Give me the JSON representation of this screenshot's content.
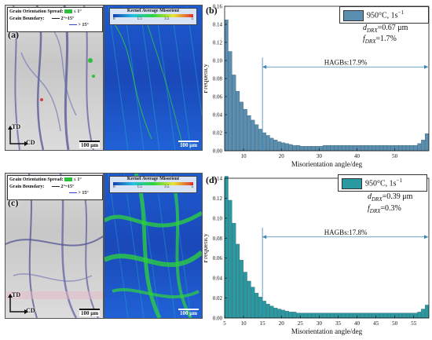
{
  "panels": {
    "a": {
      "label": "(a)",
      "legend_title": "Grain Orientation Spread:",
      "legend_gos_value": "≤ 1°",
      "legend_boundary_title": "Grain Boundary:",
      "legend_low": "2°~15°",
      "legend_high": "> 15°",
      "td": "TD",
      "cd": "CD",
      "scale": "100 μm"
    },
    "a_kam": {
      "legend_title": "Kernel Average Misorient",
      "ticks": [
        "0",
        "1.5",
        "3.5",
        "5"
      ],
      "scale": "100 μm"
    },
    "c": {
      "label": "(c)",
      "legend_title": "Grain Orientation Spread:",
      "legend_gos_value": "≤ 1°",
      "legend_boundary_title": "Grain Boundary:",
      "legend_low": "2°~15°",
      "legend_high": "> 15°",
      "td": "TD",
      "cd": "CD",
      "scale": "100 μm"
    },
    "c_kam": {
      "legend_title": "Kernel Average Misorient",
      "ticks": [
        "0",
        "1.5",
        "3.5",
        "5"
      ],
      "scale": "100 μm"
    },
    "b": {
      "label": "(b)",
      "legend_series": "950°C, 1s",
      "legend_series_sup": "−1",
      "d_label": "d",
      "d_sub": "DRX",
      "d_value": "=0.67 μm",
      "f_label": "f",
      "f_sub": "DRX",
      "f_value": "=1.7%",
      "annotation": "HAGBs:17.9%",
      "color": "#5b8fb0"
    },
    "d": {
      "label": "(d)",
      "legend_series": "950°C, 1s",
      "legend_series_sup": "−1",
      "d_label": "d",
      "d_sub": "DRX",
      "d_value": "=0.39 μm",
      "f_label": "f",
      "f_sub": "DRX",
      "f_value": "=0.3%",
      "annotation": "HAGBs:17.8%",
      "color": "#2a9aa0"
    }
  },
  "chart_data": [
    {
      "type": "bar",
      "panel": "(b)",
      "xlabel": "Misorientation angle/deg",
      "ylabel": "Frequency",
      "xlim": [
        5,
        59
      ],
      "ylim": [
        0,
        0.16
      ],
      "xticks": [
        10,
        20,
        30,
        40,
        50
      ],
      "yticks": [
        0.0,
        0.02,
        0.04,
        0.06,
        0.08,
        0.1,
        0.12,
        0.14,
        0.16
      ],
      "bin_width": 1,
      "x": [
        5,
        6,
        7,
        8,
        9,
        10,
        11,
        12,
        13,
        14,
        15,
        16,
        17,
        18,
        19,
        20,
        21,
        22,
        23,
        24,
        25,
        26,
        27,
        28,
        29,
        30,
        31,
        32,
        33,
        34,
        35,
        36,
        37,
        38,
        39,
        40,
        41,
        42,
        43,
        44,
        45,
        46,
        47,
        48,
        49,
        50,
        51,
        52,
        53,
        54,
        55,
        56,
        57,
        58
      ],
      "values": [
        0.145,
        0.11,
        0.084,
        0.066,
        0.054,
        0.046,
        0.039,
        0.034,
        0.029,
        0.024,
        0.02,
        0.017,
        0.014,
        0.012,
        0.01,
        0.009,
        0.008,
        0.007,
        0.006,
        0.006,
        0.005,
        0.005,
        0.005,
        0.005,
        0.005,
        0.005,
        0.006,
        0.006,
        0.006,
        0.006,
        0.006,
        0.006,
        0.006,
        0.006,
        0.006,
        0.006,
        0.006,
        0.006,
        0.006,
        0.006,
        0.006,
        0.006,
        0.006,
        0.006,
        0.006,
        0.006,
        0.006,
        0.006,
        0.006,
        0.006,
        0.006,
        0.008,
        0.012,
        0.019
      ],
      "annotation_x": [
        15,
        59
      ]
    },
    {
      "type": "bar",
      "panel": "(d)",
      "xlabel": "Misorientation angle/deg",
      "ylabel": "Frequency",
      "xlim": [
        5,
        59
      ],
      "ylim": [
        0,
        0.14
      ],
      "xticks": [
        5,
        10,
        15,
        20,
        25,
        30,
        35,
        40,
        45,
        50,
        55
      ],
      "yticks": [
        0.0,
        0.02,
        0.04,
        0.06,
        0.08,
        0.1,
        0.12,
        0.14
      ],
      "bin_width": 1,
      "x": [
        5,
        6,
        7,
        8,
        9,
        10,
        11,
        12,
        13,
        14,
        15,
        16,
        17,
        18,
        19,
        20,
        21,
        22,
        23,
        24,
        25,
        26,
        27,
        28,
        29,
        30,
        31,
        32,
        33,
        34,
        35,
        36,
        37,
        38,
        39,
        40,
        41,
        42,
        43,
        44,
        45,
        46,
        47,
        48,
        49,
        50,
        51,
        52,
        53,
        54,
        55,
        56,
        57,
        58
      ],
      "values": [
        0.142,
        0.118,
        0.095,
        0.074,
        0.058,
        0.046,
        0.037,
        0.031,
        0.025,
        0.021,
        0.017,
        0.014,
        0.012,
        0.01,
        0.009,
        0.008,
        0.007,
        0.006,
        0.006,
        0.005,
        0.005,
        0.005,
        0.005,
        0.005,
        0.005,
        0.005,
        0.005,
        0.005,
        0.005,
        0.005,
        0.005,
        0.005,
        0.005,
        0.005,
        0.005,
        0.005,
        0.005,
        0.005,
        0.005,
        0.005,
        0.005,
        0.005,
        0.005,
        0.005,
        0.005,
        0.005,
        0.005,
        0.005,
        0.005,
        0.005,
        0.005,
        0.006,
        0.009,
        0.013
      ],
      "annotation_x": [
        15,
        59
      ]
    }
  ]
}
